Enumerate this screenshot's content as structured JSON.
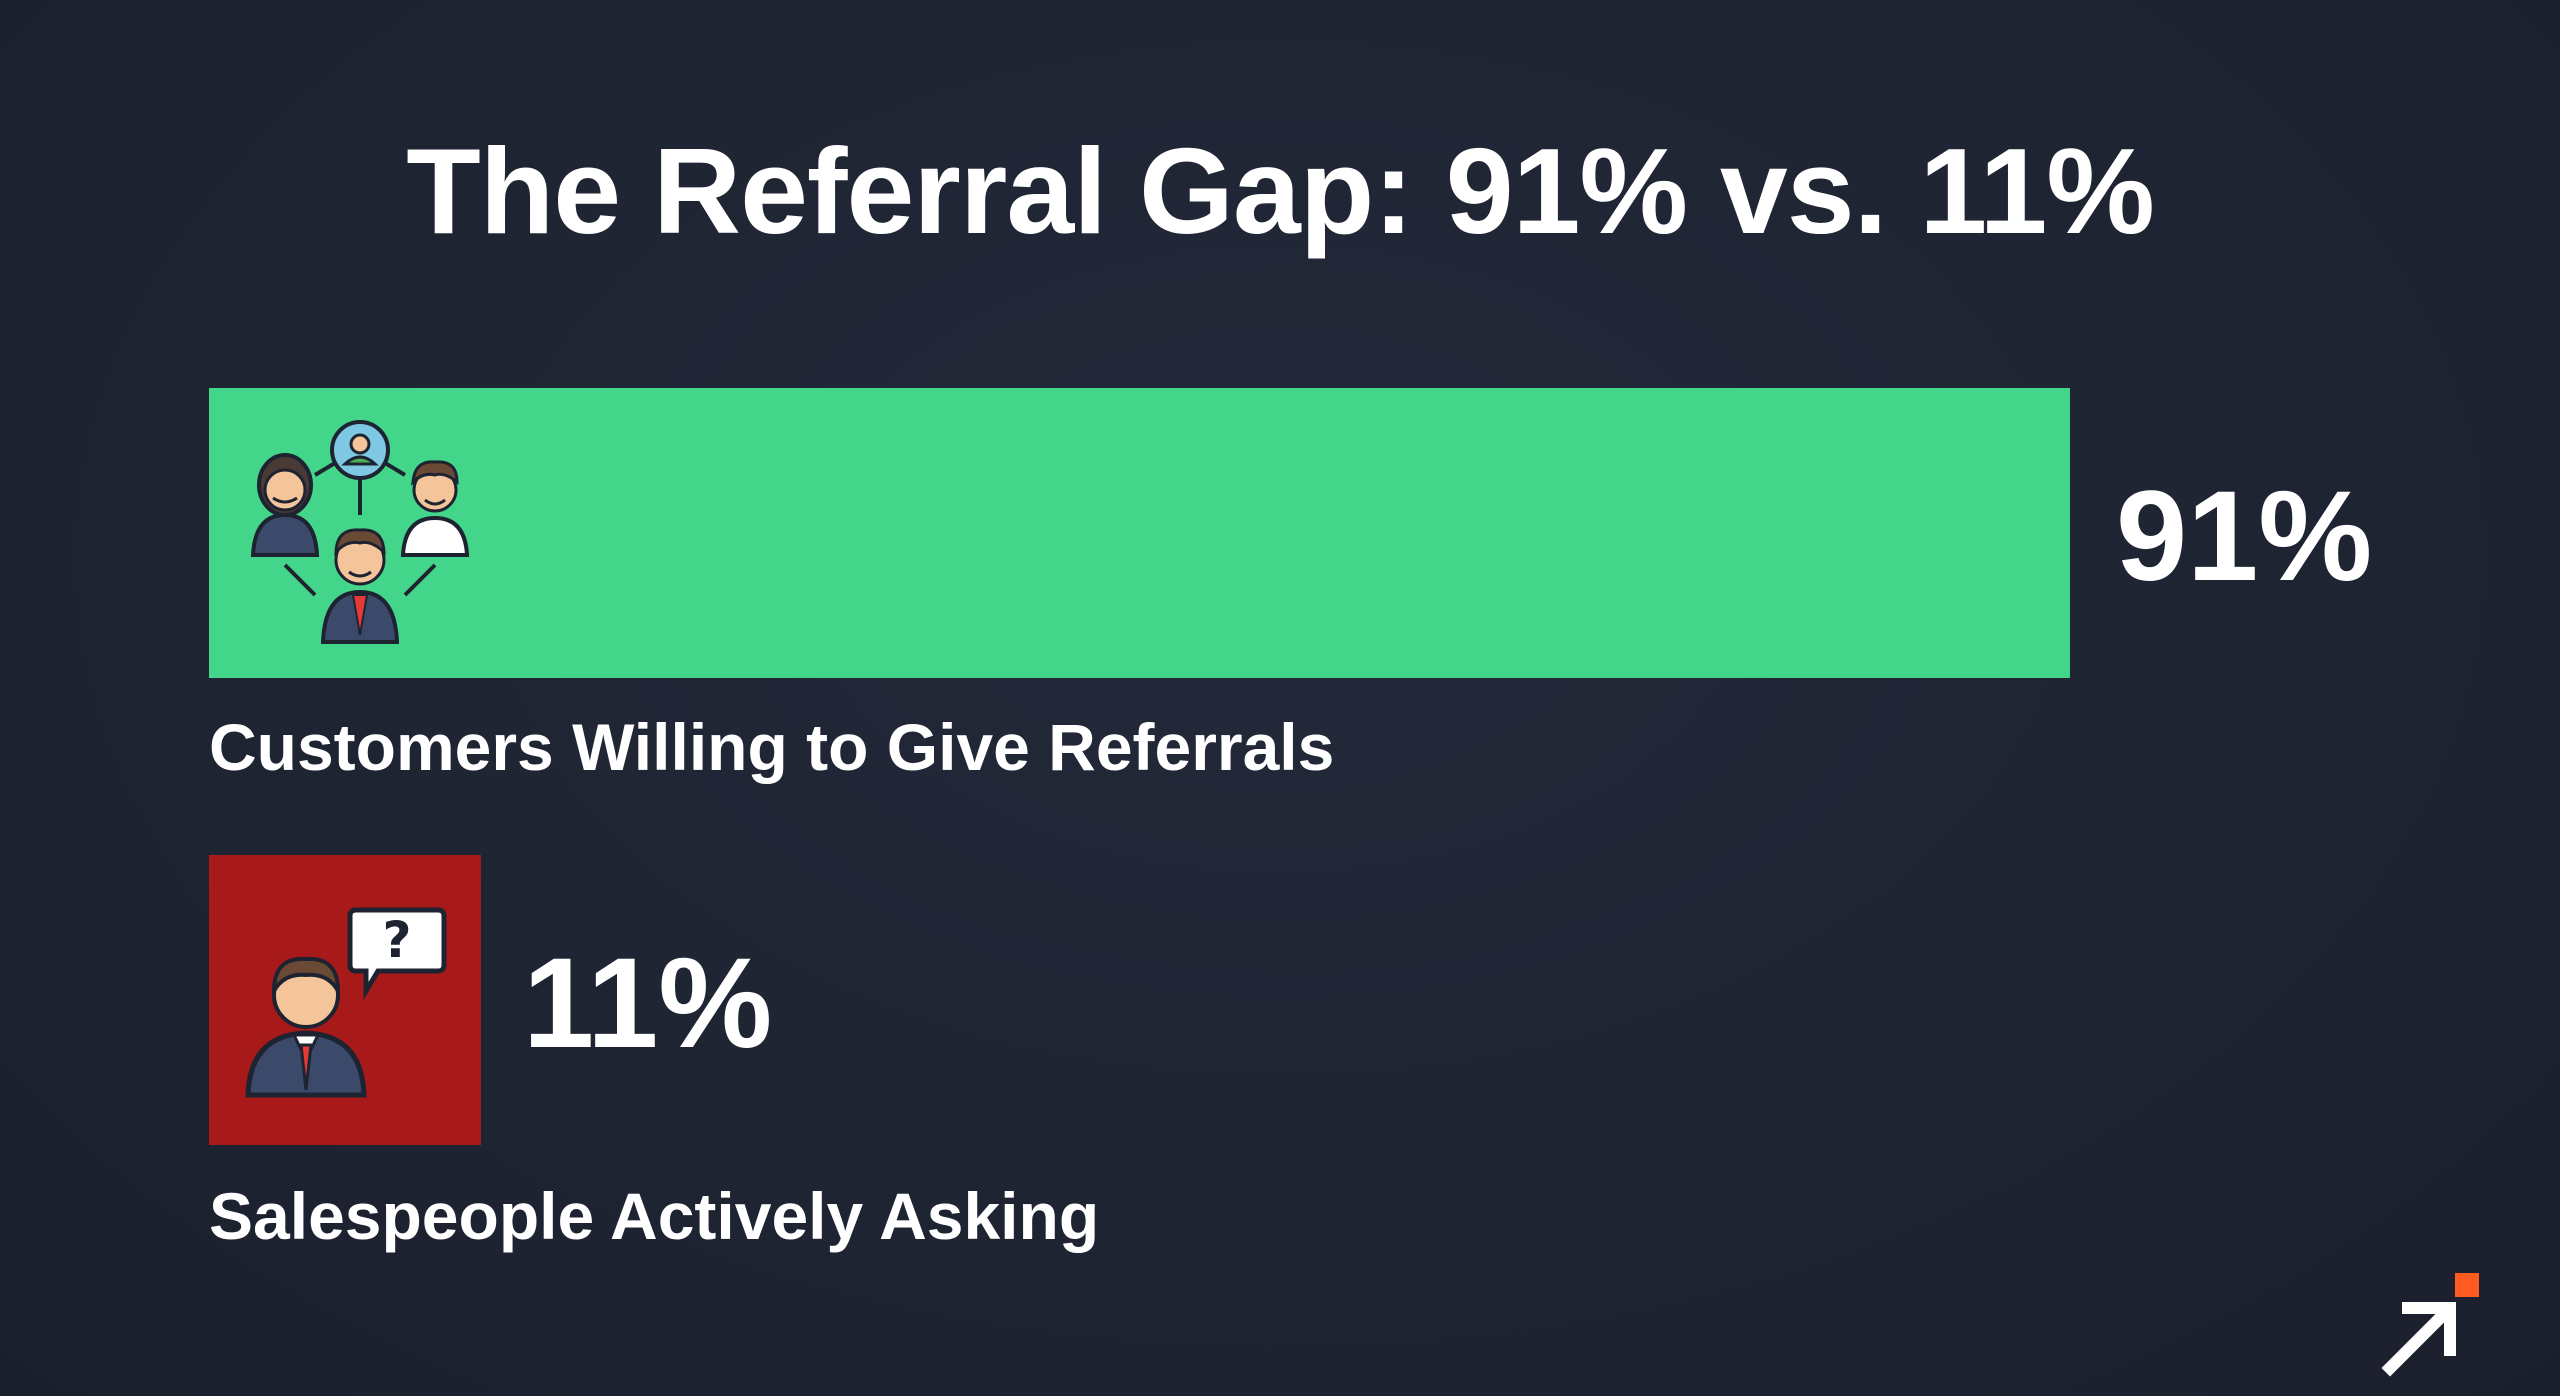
{
  "chart_data": {
    "type": "bar",
    "title": "The Referral Gap: 91% vs. 11%",
    "categories": [
      "Customers Willing to Give Referrals",
      "Salespeople Actively Asking"
    ],
    "values": [
      91,
      11
    ],
    "unit": "%",
    "value_labels": [
      "91%",
      "11%"
    ],
    "xlim": [
      0,
      100
    ],
    "orientation": "horizontal",
    "colors": [
      "#43d68b",
      "#a81a1a"
    ],
    "icons": [
      "customer-network-icon",
      "salesperson-question-icon"
    ],
    "grid": false,
    "legend": "none"
  },
  "brand": {
    "logo_icon": "arrow-up-right-icon",
    "accent": "#ff5a1f"
  }
}
